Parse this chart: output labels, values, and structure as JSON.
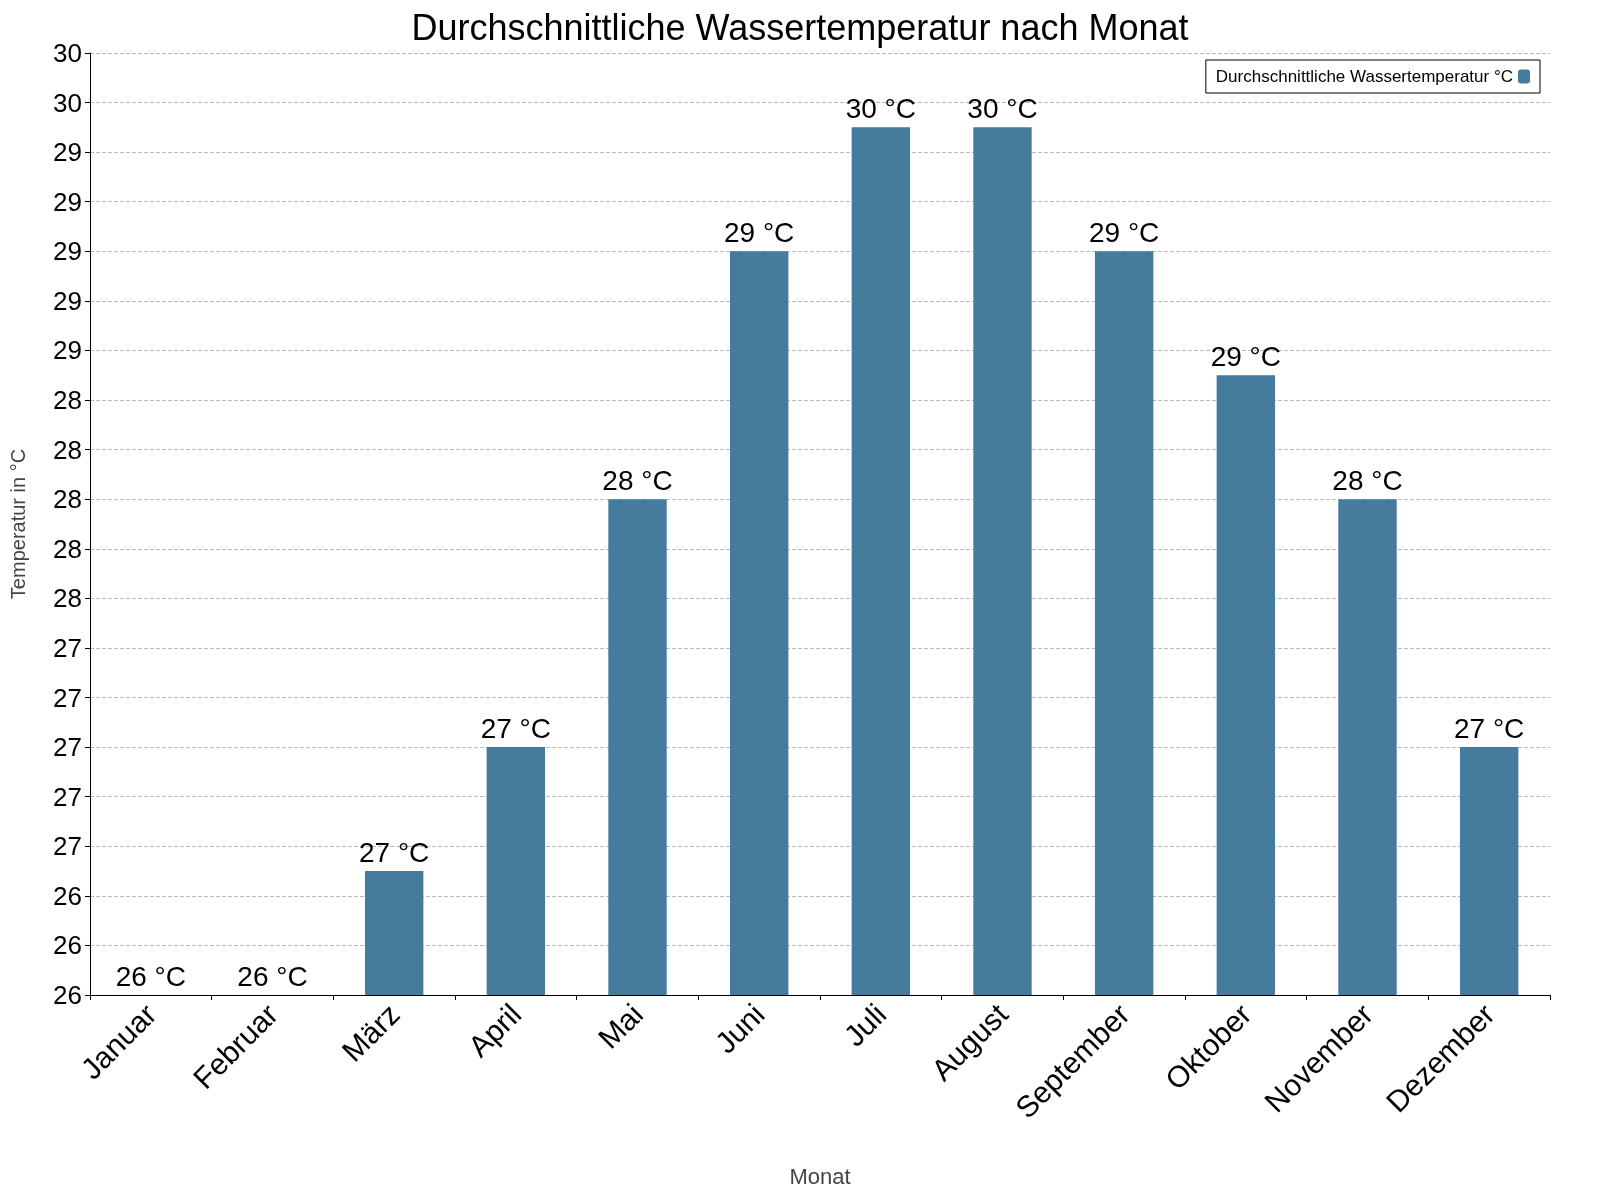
{
  "chart_data": {
    "type": "bar",
    "title": "Durchschnittliche Wassertemperatur nach Monat",
    "xlabel": "Monat",
    "ylabel": "Temperatur in °C",
    "categories": [
      "Januar",
      "Februar",
      "März",
      "April",
      "Mai",
      "Juni",
      "Juli",
      "August",
      "September",
      "Oktober",
      "November",
      "Dezember"
    ],
    "series": [
      {
        "name": "Durchschnittliche Wassertemperatur °C",
        "color": "#457b9d",
        "values": [
          26,
          26,
          26.5,
          27,
          28,
          29,
          29.5,
          29.5,
          29,
          28.5,
          28,
          27
        ],
        "value_labels": [
          "26 °C",
          "26 °C",
          "27 °C",
          "27 °C",
          "28 °C",
          "29 °C",
          "30 °C",
          "30 °C",
          "29 °C",
          "29 °C",
          "28 °C",
          "27 °C"
        ]
      }
    ],
    "ylim": [
      26,
      29.8
    ],
    "yticks": [
      {
        "value": 26,
        "label": "26"
      },
      {
        "value": 26.2,
        "label": "26"
      },
      {
        "value": 26.4,
        "label": "26"
      },
      {
        "value": 26.6,
        "label": "27"
      },
      {
        "value": 26.8,
        "label": "27"
      },
      {
        "value": 27,
        "label": "27"
      },
      {
        "value": 27.2,
        "label": "27"
      },
      {
        "value": 27.4,
        "label": "27"
      },
      {
        "value": 27.6,
        "label": "28"
      },
      {
        "value": 27.8,
        "label": "28"
      },
      {
        "value": 28,
        "label": "28"
      },
      {
        "value": 28.2,
        "label": "28"
      },
      {
        "value": 28.4,
        "label": "28"
      },
      {
        "value": 28.6,
        "label": "29"
      },
      {
        "value": 28.8,
        "label": "29"
      },
      {
        "value": 29,
        "label": "29"
      },
      {
        "value": 29.2,
        "label": "29"
      },
      {
        "value": 29.4,
        "label": "29"
      },
      {
        "value": 29.6,
        "label": "30"
      },
      {
        "value": 29.8,
        "label": "30"
      }
    ],
    "grid": "y",
    "legend": "top right"
  }
}
